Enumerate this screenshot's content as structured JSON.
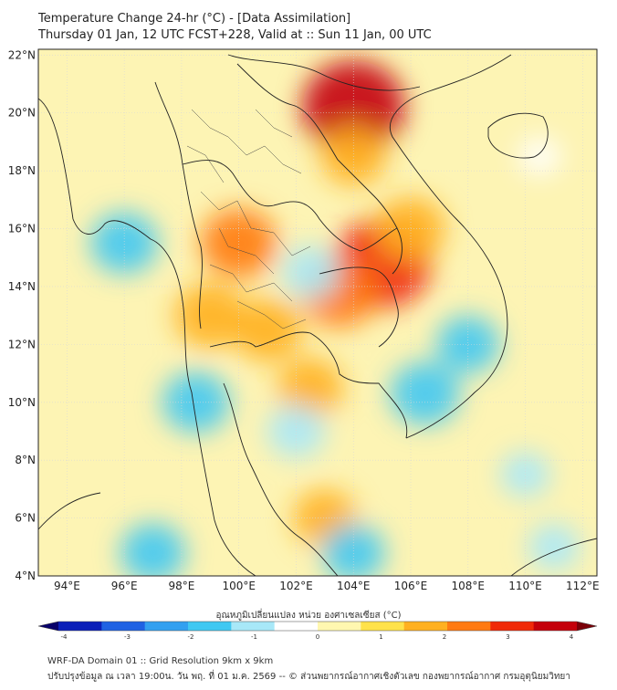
{
  "header": {
    "title_line1": "Temperature Change 24-hr (°C) - [Data Assimilation]",
    "title_line2": "Thursday 01 Jan, 12 UTC FCST+228, Valid at :: Sun 11 Jan, 00 UTC"
  },
  "map": {
    "lat_labels": [
      "22°N",
      "20°N",
      "18°N",
      "16°N",
      "14°N",
      "12°N",
      "10°N",
      "8°N",
      "6°N",
      "4°N"
    ],
    "lon_labels": [
      "94°E",
      "96°E",
      "98°E",
      "100°E",
      "102°E",
      "104°E",
      "106°E",
      "108°E",
      "110°E",
      "112°E"
    ],
    "lat_range": [
      4,
      22.2
    ],
    "lon_range": [
      93.0,
      112.5
    ],
    "background_color": "#fdf4b4",
    "field_anomalies": [
      {
        "lon": 104.0,
        "lat": 20.2,
        "value": 3.0
      },
      {
        "lon": 105.0,
        "lat": 14.8,
        "value": 2.8
      },
      {
        "lon": 103.5,
        "lat": 13.8,
        "value": 1.8
      },
      {
        "lon": 100.0,
        "lat": 15.5,
        "value": 1.8
      },
      {
        "lon": 99.0,
        "lat": 13.0,
        "value": 1.6
      },
      {
        "lon": 101.0,
        "lat": 12.5,
        "value": 1.5
      },
      {
        "lon": 102.5,
        "lat": 10.5,
        "value": 1.3
      },
      {
        "lon": 104.0,
        "lat": 18.5,
        "value": 1.3
      },
      {
        "lon": 106.0,
        "lat": 16.0,
        "value": 1.5
      },
      {
        "lon": 103.0,
        "lat": 6.0,
        "value": 1.2
      },
      {
        "lon": 96.0,
        "lat": 15.5,
        "value": -1.4
      },
      {
        "lon": 106.5,
        "lat": 10.3,
        "value": -1.5
      },
      {
        "lon": 108.0,
        "lat": 12.0,
        "value": -1.2
      },
      {
        "lon": 98.5,
        "lat": 10.0,
        "value": -1.4
      },
      {
        "lon": 102.0,
        "lat": 9.0,
        "value": -1.0
      },
      {
        "lon": 102.5,
        "lat": 14.5,
        "value": -1.0
      },
      {
        "lon": 97.0,
        "lat": 4.8,
        "value": -1.3
      },
      {
        "lon": 104.0,
        "lat": 4.8,
        "value": -1.2
      },
      {
        "lon": 110.0,
        "lat": 7.5,
        "value": -0.6
      },
      {
        "lon": 111.0,
        "lat": 5.0,
        "value": -0.7
      },
      {
        "lon": 110.5,
        "lat": 18.5,
        "value": -0.3
      }
    ]
  },
  "colorbar": {
    "label": "อุณหภูมิเปลี่ยนแปลง หน่วย องศาเซลเซียส (°C)",
    "min": -4,
    "max": 4,
    "ticks": [
      "-4",
      "-3",
      "-2",
      "-1",
      "0",
      "1",
      "2",
      "3",
      "4"
    ],
    "colors": [
      "#08006a",
      "#0b1fb8",
      "#1f62e3",
      "#33a0f0",
      "#40c8f2",
      "#a8e8f8",
      "#ffffff",
      "#fff7b0",
      "#ffe24a",
      "#ffb020",
      "#ff7a12",
      "#f02a08",
      "#c4000a",
      "#7a0008"
    ]
  },
  "footer": {
    "line1": "WRF-DA Domain 01 :: Grid Resolution 9km x 9km",
    "line2": "ปรับปรุงข้อมูล ณ เวลา 19:00น. วัน พฤ. ที่ 01 ม.ค. 2569 -- © ส่วนพยากรณ์อากาศเชิงตัวเลข กองพยากรณ์อากาศ กรมอุตุนิยมวิทยา"
  }
}
